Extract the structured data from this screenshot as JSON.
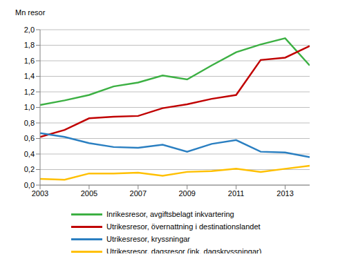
{
  "chart_data": {
    "type": "line",
    "y_label": "Mn resor",
    "x": [
      2003,
      2004,
      2005,
      2006,
      2007,
      2008,
      2009,
      2010,
      2011,
      2012,
      2013,
      2014
    ],
    "xlim": [
      2003,
      2014
    ],
    "xticks": [
      2003,
      2005,
      2007,
      2009,
      2011,
      2013
    ],
    "ylim": [
      0,
      2
    ],
    "yticks": [
      {
        "value": 0,
        "label": "0,0"
      },
      {
        "value": 0.2,
        "label": "0,2"
      },
      {
        "value": 0.4,
        "label": "0,4"
      },
      {
        "value": 0.6,
        "label": "0,6"
      },
      {
        "value": 0.8,
        "label": "0,8"
      },
      {
        "value": 1.0,
        "label": "1,0"
      },
      {
        "value": 1.2,
        "label": "1,2"
      },
      {
        "value": 1.4,
        "label": "1,4"
      },
      {
        "value": 1.6,
        "label": "1,6"
      },
      {
        "value": 1.8,
        "label": "1,8"
      },
      {
        "value": 2.0,
        "label": "2,0"
      }
    ],
    "grid": true,
    "legend": "bottom",
    "series": [
      {
        "name": "Inrikesresor, avgiftsbelagt inkvartering",
        "color": "#3cb043",
        "values": [
          1.03,
          1.09,
          1.16,
          1.27,
          1.32,
          1.41,
          1.36,
          1.54,
          1.71,
          1.81,
          1.89,
          1.54
        ]
      },
      {
        "name": "Utrikesresor, övernattning i destinationslandet",
        "color": "#c00000",
        "values": [
          0.62,
          0.71,
          0.86,
          0.88,
          0.89,
          0.99,
          1.04,
          1.11,
          1.16,
          1.61,
          1.64,
          1.79
        ]
      },
      {
        "name": "Utrikesresor, kryssningar",
        "color": "#2a7fc1",
        "values": [
          0.67,
          0.62,
          0.54,
          0.49,
          0.48,
          0.52,
          0.43,
          0.53,
          0.58,
          0.43,
          0.42,
          0.36
        ]
      },
      {
        "name": "Utrikesresor, dagsresor (ink. dagskryssningar)",
        "color": "#ffc000",
        "values": [
          0.08,
          0.07,
          0.15,
          0.15,
          0.16,
          0.12,
          0.17,
          0.18,
          0.21,
          0.17,
          0.21,
          0.25
        ]
      }
    ]
  }
}
